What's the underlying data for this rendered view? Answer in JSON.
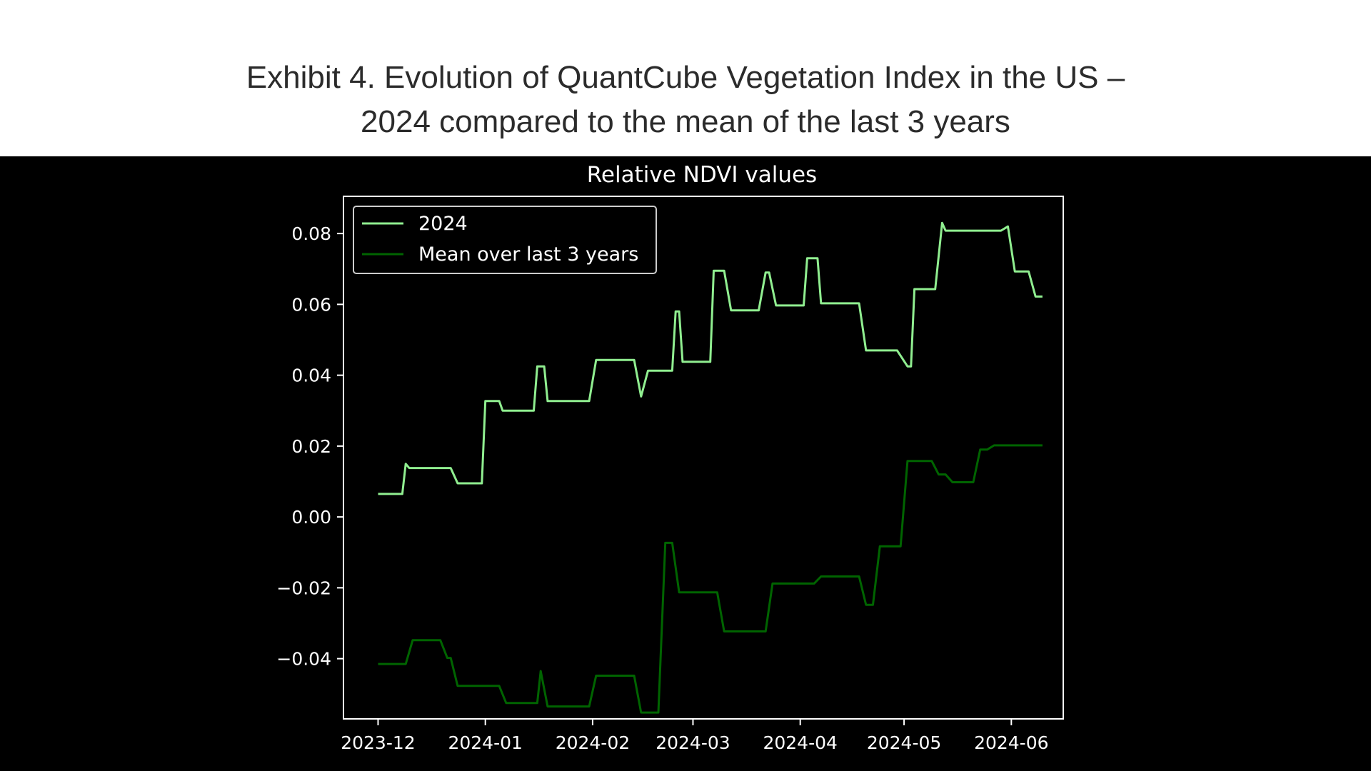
{
  "header": {
    "title_line1": "Exhibit 4. Evolution of QuantCube Vegetation Index in the US –",
    "title_line2": "2024 compared to the mean of the last 3 years"
  },
  "chart_data": {
    "type": "line",
    "title": "Relative NDVI values",
    "xlabel": "",
    "ylabel": "",
    "ylim": [
      -0.057,
      0.0905
    ],
    "xlim": [
      "2023-11-21",
      "2024-06-16"
    ],
    "yticks": [
      {
        "value": 0.08,
        "label": "0.08"
      },
      {
        "value": 0.06,
        "label": "0.06"
      },
      {
        "value": 0.04,
        "label": "0.04"
      },
      {
        "value": 0.02,
        "label": "0.02"
      },
      {
        "value": 0.0,
        "label": "0.00"
      },
      {
        "value": -0.02,
        "label": "−0.02"
      },
      {
        "value": -0.04,
        "label": "−0.04"
      }
    ],
    "xticks": [
      {
        "date": "2023-12-01",
        "label": "2023-12"
      },
      {
        "date": "2024-01-01",
        "label": "2024-01"
      },
      {
        "date": "2024-02-01",
        "label": "2024-02"
      },
      {
        "date": "2024-03-01",
        "label": "2024-03"
      },
      {
        "date": "2024-04-01",
        "label": "2024-04"
      },
      {
        "date": "2024-05-01",
        "label": "2024-05"
      },
      {
        "date": "2024-06-01",
        "label": "2024-06"
      }
    ],
    "legend_position": "upper-left",
    "series": [
      {
        "name": "2024",
        "color": "#90ee90",
        "points": [
          [
            "2023-12-01",
            0.0065
          ],
          [
            "2023-12-08",
            0.0065
          ],
          [
            "2023-12-09",
            0.015
          ],
          [
            "2023-12-10",
            0.0138
          ],
          [
            "2023-12-22",
            0.0138
          ],
          [
            "2023-12-24",
            0.0095
          ],
          [
            "2023-12-31",
            0.0095
          ],
          [
            "2024-01-01",
            0.0327
          ],
          [
            "2024-01-05",
            0.0327
          ],
          [
            "2024-01-06",
            0.03
          ],
          [
            "2024-01-15",
            0.03
          ],
          [
            "2024-01-16",
            0.0425
          ],
          [
            "2024-01-18",
            0.0425
          ],
          [
            "2024-01-19",
            0.0327
          ],
          [
            "2024-01-31",
            0.0327
          ],
          [
            "2024-02-02",
            0.0443
          ],
          [
            "2024-02-13",
            0.0443
          ],
          [
            "2024-02-15",
            0.034
          ],
          [
            "2024-02-17",
            0.0413
          ],
          [
            "2024-02-24",
            0.0413
          ],
          [
            "2024-02-25",
            0.058
          ],
          [
            "2024-02-26",
            0.058
          ],
          [
            "2024-02-27",
            0.0438
          ],
          [
            "2024-03-06",
            0.0438
          ],
          [
            "2024-03-07",
            0.0695
          ],
          [
            "2024-03-10",
            0.0695
          ],
          [
            "2024-03-12",
            0.0583
          ],
          [
            "2024-03-20",
            0.0583
          ],
          [
            "2024-03-22",
            0.069
          ],
          [
            "2024-03-23",
            0.069
          ],
          [
            "2024-03-25",
            0.0597
          ],
          [
            "2024-04-02",
            0.0597
          ],
          [
            "2024-04-03",
            0.073
          ],
          [
            "2024-04-06",
            0.073
          ],
          [
            "2024-04-07",
            0.0603
          ],
          [
            "2024-04-18",
            0.0603
          ],
          [
            "2024-04-20",
            0.047
          ],
          [
            "2024-04-29",
            0.047
          ],
          [
            "2024-05-02",
            0.0425
          ],
          [
            "2024-05-03",
            0.0425
          ],
          [
            "2024-05-04",
            0.0643
          ],
          [
            "2024-05-10",
            0.0643
          ],
          [
            "2024-05-12",
            0.083
          ],
          [
            "2024-05-13",
            0.0808
          ],
          [
            "2024-05-29",
            0.0808
          ],
          [
            "2024-05-31",
            0.082
          ],
          [
            "2024-06-02",
            0.0693
          ],
          [
            "2024-06-06",
            0.0693
          ],
          [
            "2024-06-08",
            0.0622
          ],
          [
            "2024-06-10",
            0.0622
          ]
        ]
      },
      {
        "name": "Mean over last 3 years",
        "color": "#006400",
        "points": [
          [
            "2023-12-01",
            -0.0415
          ],
          [
            "2023-12-09",
            -0.0415
          ],
          [
            "2023-12-11",
            -0.0348
          ],
          [
            "2023-12-19",
            -0.0348
          ],
          [
            "2023-12-21",
            -0.0398
          ],
          [
            "2023-12-22",
            -0.0398
          ],
          [
            "2023-12-24",
            -0.0477
          ],
          [
            "2024-01-05",
            -0.0477
          ],
          [
            "2024-01-07",
            -0.0525
          ],
          [
            "2024-01-16",
            -0.0525
          ],
          [
            "2024-01-17",
            -0.0435
          ],
          [
            "2024-01-19",
            -0.0535
          ],
          [
            "2024-01-31",
            -0.0535
          ],
          [
            "2024-02-02",
            -0.0448
          ],
          [
            "2024-02-13",
            -0.0448
          ],
          [
            "2024-02-15",
            -0.0552
          ],
          [
            "2024-02-20",
            -0.0552
          ],
          [
            "2024-02-22",
            -0.0073
          ],
          [
            "2024-02-24",
            -0.0073
          ],
          [
            "2024-02-26",
            -0.0213
          ],
          [
            "2024-03-08",
            -0.0213
          ],
          [
            "2024-03-10",
            -0.0323
          ],
          [
            "2024-03-22",
            -0.0323
          ],
          [
            "2024-03-24",
            -0.0188
          ],
          [
            "2024-04-05",
            -0.0188
          ],
          [
            "2024-04-07",
            -0.0168
          ],
          [
            "2024-04-18",
            -0.0168
          ],
          [
            "2024-04-20",
            -0.0248
          ],
          [
            "2024-04-22",
            -0.0248
          ],
          [
            "2024-04-24",
            -0.0083
          ],
          [
            "2024-04-30",
            -0.0083
          ],
          [
            "2024-05-02",
            0.0158
          ],
          [
            "2024-05-09",
            0.0158
          ],
          [
            "2024-05-11",
            0.012
          ],
          [
            "2024-05-13",
            0.012
          ],
          [
            "2024-05-15",
            0.0098
          ],
          [
            "2024-05-21",
            0.0098
          ],
          [
            "2024-05-23",
            0.019
          ],
          [
            "2024-05-25",
            0.019
          ],
          [
            "2024-05-27",
            0.0202
          ],
          [
            "2024-06-10",
            0.0202
          ]
        ]
      }
    ]
  }
}
